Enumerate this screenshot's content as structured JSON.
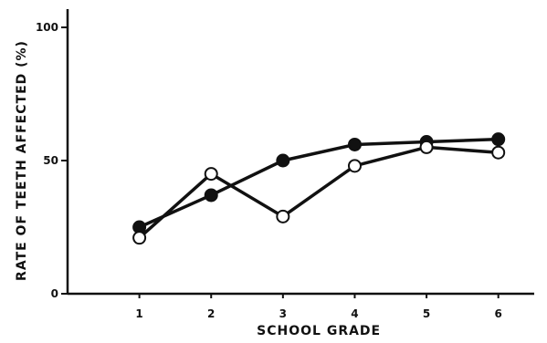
{
  "chart_data": {
    "type": "line",
    "xlabel": "SCHOOL GRADE",
    "ylabel": "RATE OF TEETH AFFECTED (%)",
    "x": [
      1,
      2,
      3,
      4,
      5,
      6
    ],
    "xlim": [
      0,
      6.5
    ],
    "ylim": [
      0,
      100
    ],
    "yticks": [
      0,
      50,
      100
    ],
    "grid": false,
    "series": [
      {
        "marker": "filled-circle",
        "values": [
          25,
          37,
          50,
          56,
          57,
          58
        ]
      },
      {
        "marker": "open-circle",
        "values": [
          21,
          45,
          29,
          48,
          55,
          53
        ]
      }
    ]
  }
}
